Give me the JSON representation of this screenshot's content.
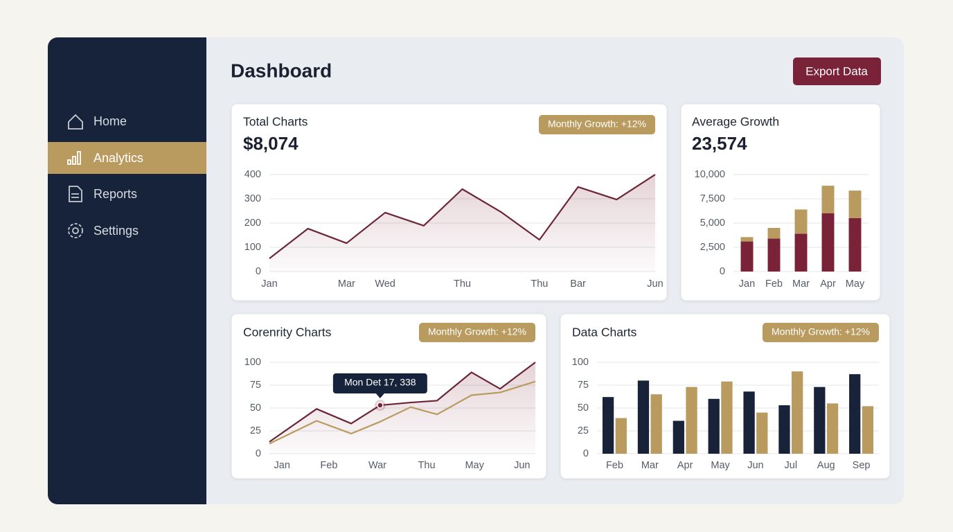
{
  "sidebar": {
    "nav": [
      "Home",
      "Analytics",
      "Reports",
      "Settings"
    ]
  },
  "header": {
    "title": "Dashboard",
    "button": "Export Data"
  },
  "chart_data": [
    {
      "type": "line",
      "title": "Total Charts",
      "value": "$8,074",
      "badge": "Monthly Growth: +12%",
      "categories": [
        "Jan",
        null,
        "Mar",
        "Wed",
        null,
        "Thu",
        null,
        "Thu",
        "Bar",
        null,
        "Jun"
      ],
      "series": [
        {
          "color": "#6b2537",
          "values": [
            54,
            177,
            117,
            243,
            189,
            340,
            246,
            131,
            349,
            297,
            400
          ]
        }
      ],
      "ylim": [
        0,
        400
      ],
      "yticks": [
        0,
        100,
        200,
        300,
        400
      ],
      "grid": true
    },
    {
      "type": "bar",
      "stacked": true,
      "title": "Average Growth",
      "value": "23,574",
      "categories": [
        "Jan",
        "Feb",
        "Mar",
        "Apr",
        "May"
      ],
      "series": [
        {
          "color": "#7a2338",
          "values": [
            3100,
            3400,
            3900,
            6000,
            5500
          ]
        },
        {
          "color": "#b99a5f",
          "values": [
            450,
            1100,
            2500,
            2850,
            2850
          ]
        }
      ],
      "ylim": [
        0,
        10000
      ],
      "yticks": [
        0,
        {
          "value": 2500,
          "label": "2,500"
        },
        {
          "value": 5000,
          "label": "5,000"
        },
        {
          "value": 7500,
          "label": "7,500"
        },
        {
          "value": 10000,
          "label": "10,000"
        }
      ],
      "grid": true
    },
    {
      "type": "line",
      "title": "Corenrity Charts",
      "badge": "Monthly Growth: +12%",
      "annotation": "Mon Det 17, 338",
      "x": [
        0,
        1.42,
        2.46,
        3.33,
        4.25,
        5.04,
        6.08,
        6.94,
        8
      ],
      "xlim": [
        0,
        8
      ],
      "xticks": [
        {
          "value": 0.38,
          "label": "Jan"
        },
        {
          "value": 1.79,
          "label": "Feb"
        },
        {
          "value": 3.25,
          "label": "War"
        },
        {
          "value": 4.73,
          "label": "Thu"
        },
        {
          "value": 6.17,
          "label": "May"
        },
        {
          "value": 7.6,
          "label": "Jun"
        }
      ],
      "series": [
        {
          "color": "#6b2537",
          "values": [
            13,
            49,
            33,
            53,
            56,
            58,
            89,
            71,
            100
          ]
        },
        {
          "color": "#b99a5f",
          "values": [
            11,
            36,
            22,
            35,
            51,
            43,
            64,
            67,
            79
          ]
        }
      ],
      "ylim": [
        0,
        100
      ],
      "yticks": [
        0,
        25,
        50,
        75,
        100
      ],
      "grid": true
    },
    {
      "type": "bar",
      "stacked": false,
      "title": "Data Charts",
      "badge": "Monthly Growth: +12%",
      "categories": [
        "Feb",
        "Mar",
        "Apr",
        "May",
        "Jun",
        "Jul",
        "Aug",
        "Sep"
      ],
      "series": [
        {
          "color": "#18233a",
          "values": [
            62,
            80,
            36,
            60,
            68,
            53,
            73,
            87
          ]
        },
        {
          "color": "#b99a5f",
          "values": [
            39,
            65,
            73,
            79,
            45,
            90,
            55,
            52
          ]
        }
      ],
      "ylim": [
        0,
        100
      ],
      "yticks": [
        0,
        25,
        50,
        75,
        100
      ],
      "grid": true
    }
  ]
}
